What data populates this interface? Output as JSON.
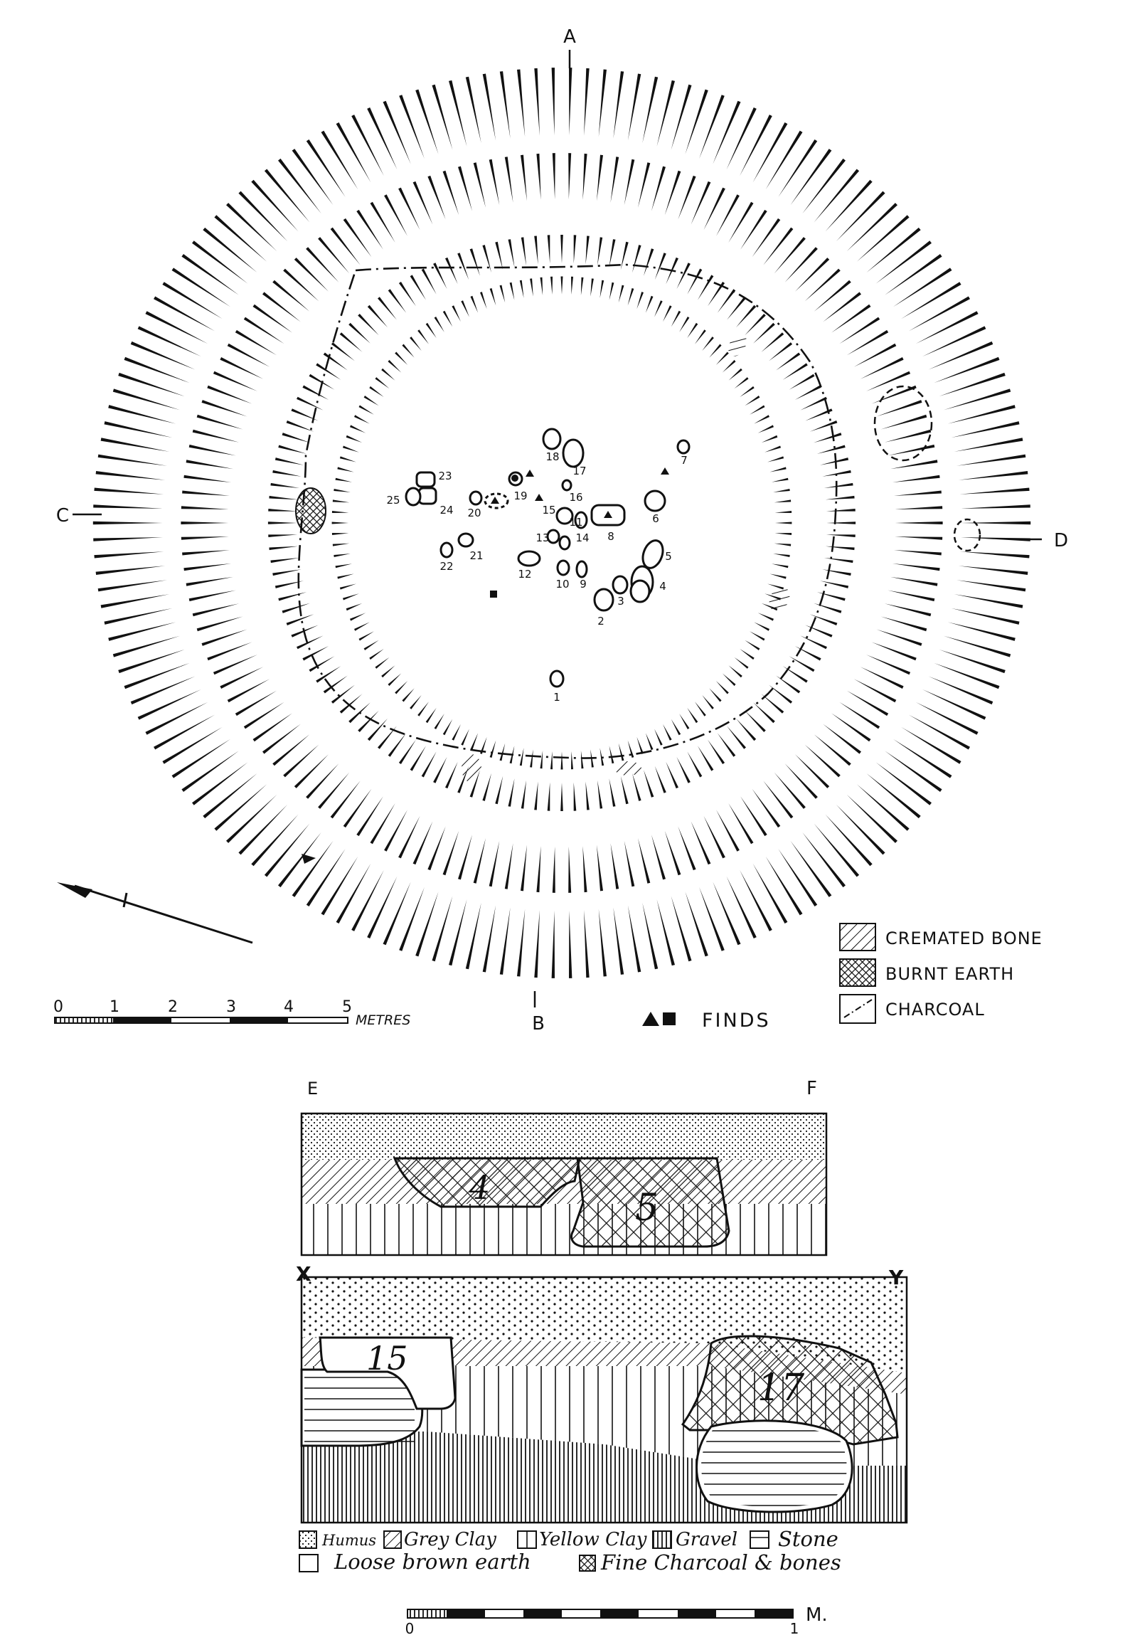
{
  "plan": {
    "section_markers": {
      "a": "A",
      "b": "B",
      "c": "C",
      "d": "D"
    },
    "features": [
      {
        "label": "1"
      },
      {
        "label": "2"
      },
      {
        "label": "3"
      },
      {
        "label": "4"
      },
      {
        "label": "5"
      },
      {
        "label": "6"
      },
      {
        "label": "7"
      },
      {
        "label": "8"
      },
      {
        "label": "9"
      },
      {
        "label": "10"
      },
      {
        "label": "11"
      },
      {
        "label": "12"
      },
      {
        "label": "13"
      },
      {
        "label": "14"
      },
      {
        "label": "15"
      },
      {
        "label": "16"
      },
      {
        "label": "17"
      },
      {
        "label": "18"
      },
      {
        "label": "19"
      },
      {
        "label": "20"
      },
      {
        "label": "21"
      },
      {
        "label": "22"
      },
      {
        "label": "23"
      },
      {
        "label": "24"
      },
      {
        "label": "25"
      }
    ],
    "scale": {
      "ticks": [
        "0",
        "1",
        "2",
        "3",
        "4",
        "5"
      ],
      "unit": "METRES"
    },
    "finds_label": "FINDS",
    "legend": [
      {
        "key": "cremated-bone",
        "label": "CREMATED BONE"
      },
      {
        "key": "burnt-earth",
        "label": "BURNT EARTH"
      },
      {
        "key": "charcoal",
        "label": "CHARCOAL"
      }
    ]
  },
  "sections": {
    "ef": {
      "left": "E",
      "right": "F",
      "labels": [
        "4",
        "5"
      ]
    },
    "xy": {
      "left": "X",
      "right": "Y",
      "labels": [
        "15",
        "17"
      ]
    },
    "legend": [
      {
        "key": "humus",
        "label": "Humus"
      },
      {
        "key": "grey-clay",
        "label": "Grey Clay"
      },
      {
        "key": "yellow-clay",
        "label": "Yellow Clay"
      },
      {
        "key": "gravel",
        "label": "Gravel"
      },
      {
        "key": "stone",
        "label": "Stone"
      },
      {
        "key": "loose-brown-earth",
        "label": "Loose brown earth"
      },
      {
        "key": "fine-charcoal-bones",
        "label": "Fine Charcoal & bones"
      }
    ],
    "scale": {
      "ticks": [
        "0",
        "1"
      ],
      "unit": "M."
    }
  }
}
